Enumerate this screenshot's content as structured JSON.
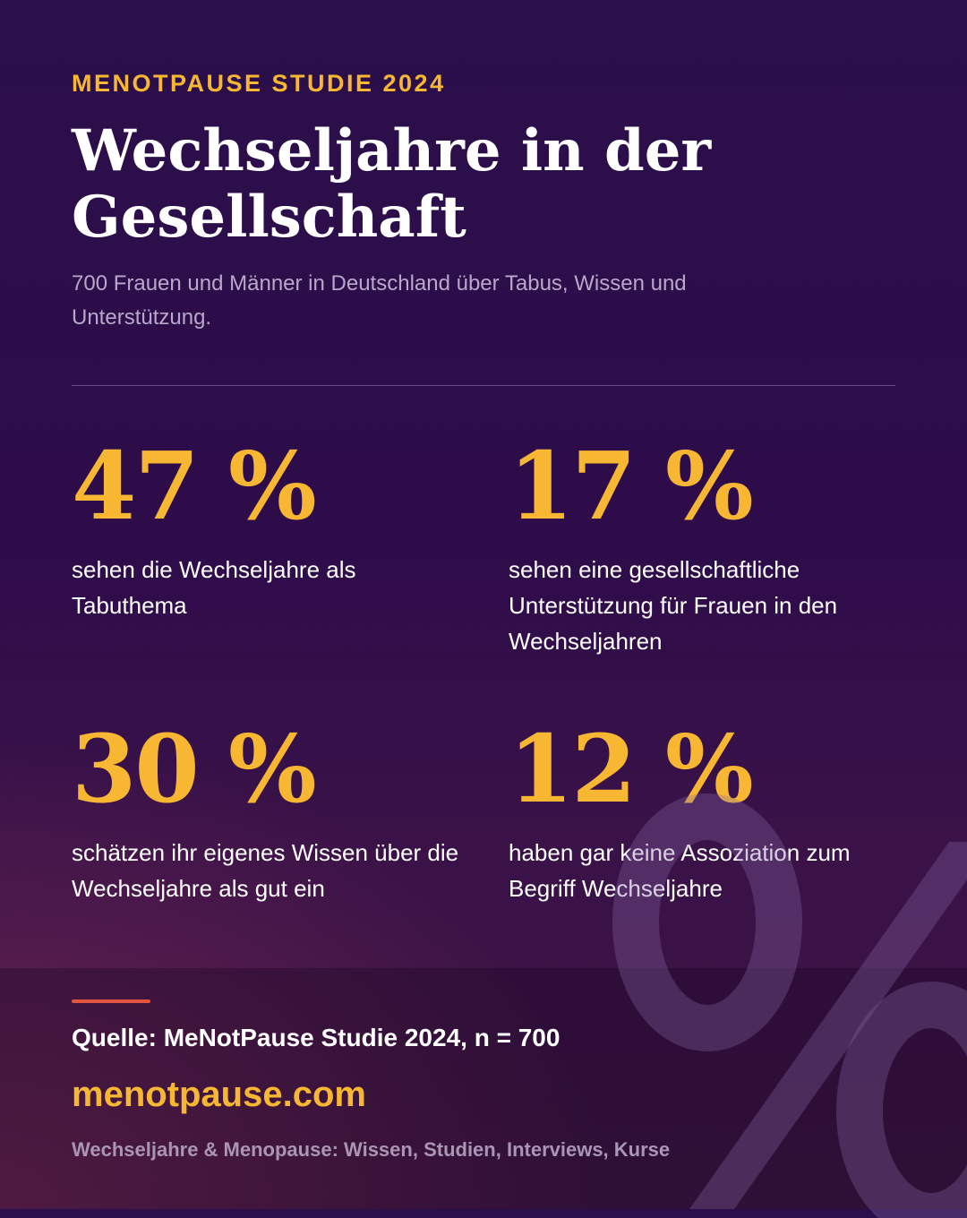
{
  "header": {
    "eyebrow": "MENOTPAUSE STUDIE 2024",
    "title": "Wechseljahre in der Gesellschaft",
    "subtitle": "700 Frauen und Männer in Deutschland über Tabus, Wissen und Unterstützung."
  },
  "stats": [
    {
      "value": "47 %",
      "description": "sehen die Wechseljahre als Tabuthema"
    },
    {
      "value": "17 %",
      "description": "sehen eine gesellschaftliche Unterstützung für Frauen in den Wechseljahren"
    },
    {
      "value": "30 %",
      "description": "schätzen ihr eigenes Wissen über die Wechseljahre als gut ein"
    },
    {
      "value": "12 %",
      "description": "haben gar keine Assoziation zum Begriff Wechseljahre"
    }
  ],
  "footer": {
    "source": "Quelle: MeNotPause Studie 2024, n = 700",
    "website": "menotpause.com",
    "tagline": "Wechseljahre & Menopause: Wissen, Studien, Interviews, Kurse"
  },
  "decor": {
    "watermark_icon": "percent-icon"
  },
  "colors": {
    "accent": "#f7b733",
    "background": "#2a0f4a",
    "footer_bar": "#e2553f",
    "text": "#ffffff",
    "muted": "#b9a8c9"
  }
}
